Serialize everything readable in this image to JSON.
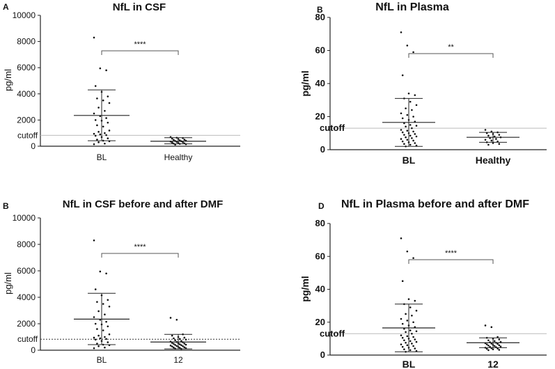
{
  "chart_data": [
    {
      "type": "scatter",
      "panel_label": "A",
      "title": "NfL in CSF",
      "ylabel": "pg/ml",
      "ylim": [
        0,
        10000
      ],
      "yticks": [
        0,
        2000,
        4000,
        6000,
        8000,
        10000
      ],
      "cutoff": {
        "label": "cutoff",
        "value": 830,
        "style": "solid"
      },
      "categories": [
        "BL",
        "Healthy"
      ],
      "groups": [
        {
          "name": "BL",
          "mean": 2350,
          "sd_low": 420,
          "sd_high": 4300,
          "points": [
            8300,
            5950,
            5800,
            4600,
            4150,
            3800,
            3650,
            3500,
            3300,
            2950,
            2700,
            2500,
            2300,
            2150,
            2000,
            1950,
            1800,
            1600,
            1500,
            1200,
            1100,
            1000,
            950,
            900,
            850,
            800,
            700,
            600,
            500,
            420,
            380,
            300,
            200,
            150
          ]
        },
        {
          "name": "Healthy",
          "mean": 380,
          "sd_low": 180,
          "sd_high": 650,
          "points": [
            700,
            650,
            620,
            580,
            550,
            500,
            480,
            450,
            420,
            400,
            380,
            350,
            320,
            300,
            280,
            250,
            220,
            200,
            180,
            150,
            120
          ]
        }
      ],
      "significance": "****"
    },
    {
      "type": "scatter",
      "panel_label": "B",
      "title": "NfL in Plasma",
      "ylabel": "pg/ml",
      "ylim": [
        0,
        80
      ],
      "yticks": [
        0,
        20,
        40,
        60,
        80
      ],
      "cutoff": {
        "label": "cutoff",
        "value": 13,
        "style": "solid"
      },
      "categories": [
        "BL",
        "Healthy"
      ],
      "groups": [
        {
          "name": "BL",
          "mean": 16.5,
          "sd_low": 2,
          "sd_high": 31,
          "points": [
            71,
            63,
            59,
            45,
            34,
            33,
            31,
            29,
            27,
            25,
            24,
            22,
            21,
            20,
            19,
            18,
            17,
            16,
            15,
            14.5,
            14,
            13,
            12,
            11.5,
            11,
            10.5,
            10,
            9.5,
            9,
            8.5,
            8,
            7.5,
            7,
            6.5,
            6,
            5.5,
            5,
            4.5,
            4,
            3.5,
            3,
            2.5,
            2
          ]
        },
        {
          "name": "Healthy",
          "mean": 7.5,
          "sd_low": 4.5,
          "sd_high": 10.5,
          "points": [
            12,
            11,
            10.5,
            10,
            9.5,
            9,
            8.5,
            8,
            7.5,
            7,
            6.5,
            6,
            5.5,
            5,
            4.5,
            4,
            3.5,
            3
          ]
        }
      ],
      "significance": "**"
    },
    {
      "type": "scatter",
      "panel_label": "B",
      "title": "NfL in CSF before and after DMF",
      "ylabel": "pg/ml",
      "ylim": [
        0,
        10000
      ],
      "yticks": [
        0,
        2000,
        4000,
        6000,
        8000,
        10000
      ],
      "cutoff": {
        "label": "cutoff",
        "value": 830,
        "style": "dotted"
      },
      "categories": [
        "BL",
        "12"
      ],
      "groups": [
        {
          "name": "BL",
          "mean": 2350,
          "sd_low": 420,
          "sd_high": 4300,
          "points": [
            8300,
            5950,
            5800,
            4600,
            4150,
            3800,
            3650,
            3500,
            3300,
            2950,
            2700,
            2500,
            2300,
            2150,
            2000,
            1950,
            1800,
            1600,
            1500,
            1200,
            1100,
            1000,
            950,
            900,
            850,
            800,
            700,
            600,
            500,
            420,
            380,
            300,
            200,
            150
          ]
        },
        {
          "name": "12",
          "mean": 620,
          "sd_low": 100,
          "sd_high": 1200,
          "points": [
            2450,
            2300,
            1200,
            1100,
            1000,
            950,
            900,
            850,
            800,
            750,
            700,
            650,
            620,
            600,
            550,
            520,
            500,
            480,
            450,
            420,
            400,
            380,
            350,
            320,
            300,
            280,
            250,
            220,
            200,
            180,
            150,
            120,
            100
          ]
        }
      ],
      "significance": "****"
    },
    {
      "type": "scatter",
      "panel_label": "D",
      "title": "NfL in Plasma before and after DMF",
      "ylabel": "pg/ml",
      "ylim": [
        0,
        80
      ],
      "yticks": [
        0,
        20,
        40,
        60,
        80
      ],
      "cutoff": {
        "label": "cutoff",
        "value": 13,
        "style": "solid"
      },
      "categories": [
        "BL",
        "12"
      ],
      "groups": [
        {
          "name": "BL",
          "mean": 16.5,
          "sd_low": 2,
          "sd_high": 31,
          "points": [
            71,
            63,
            59,
            45,
            34,
            33,
            31,
            29,
            27,
            25,
            24,
            22,
            21,
            20,
            19,
            18,
            17,
            16,
            15,
            14.5,
            14,
            13,
            12,
            11.5,
            11,
            10.5,
            10,
            9.5,
            9,
            8.5,
            8,
            7.5,
            7,
            6.5,
            6,
            5.5,
            5,
            4.5,
            4,
            3.5,
            3,
            2.5,
            2
          ]
        },
        {
          "name": "12",
          "mean": 7.5,
          "sd_low": 4.5,
          "sd_high": 10.5,
          "points": [
            18,
            17,
            11,
            10.5,
            10,
            9.5,
            9,
            8.5,
            8,
            7.8,
            7.5,
            7.2,
            7,
            6.8,
            6.5,
            6.2,
            6,
            5.8,
            5.5,
            5.2,
            5,
            4.8,
            4.5,
            4.2,
            4,
            3.8,
            3.5,
            3.2,
            3
          ]
        }
      ],
      "significance": "****"
    }
  ]
}
